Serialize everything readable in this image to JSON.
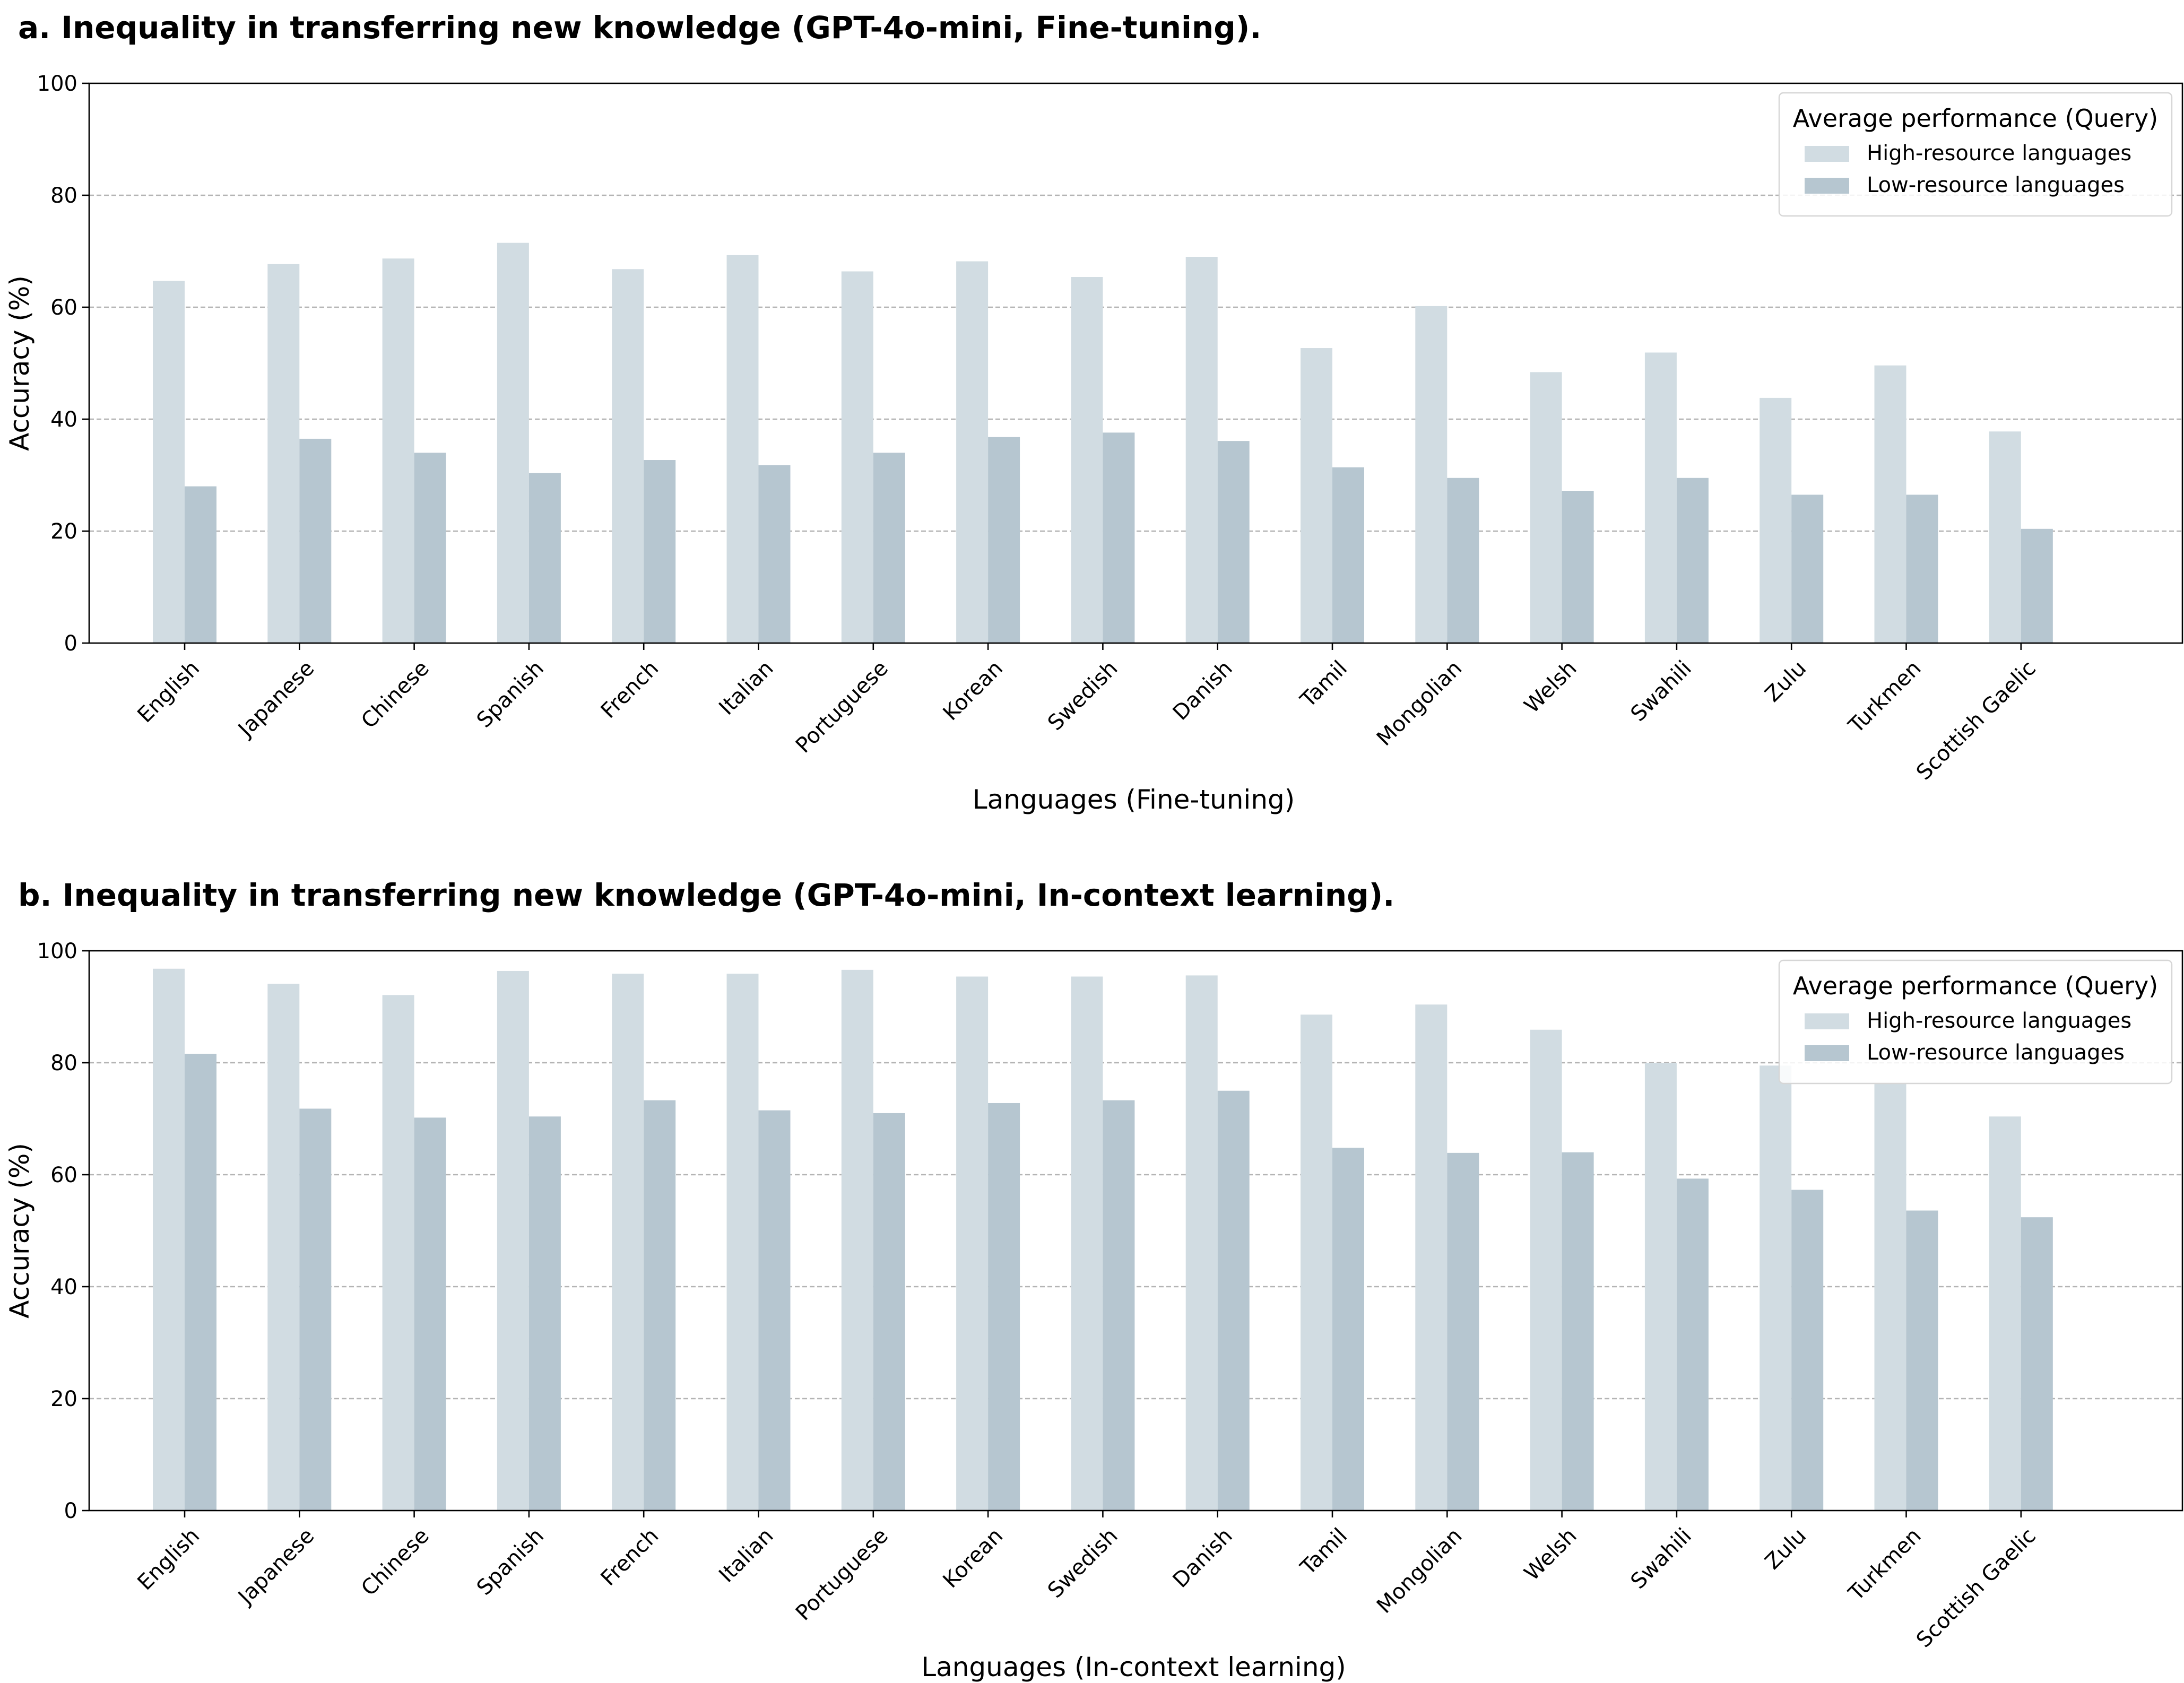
{
  "chart_data": [
    {
      "type": "bar",
      "panel_title": "a. Inequality in transferring new knowledge (GPT-4o-mini, Fine-tuning).",
      "xlabel": "Languages (Fine-tuning)",
      "ylabel": "Accuracy (%)",
      "ylim": [
        0,
        100
      ],
      "yticks": [
        0,
        20,
        40,
        60,
        80,
        100
      ],
      "grid": "horizontal dashed",
      "legend": {
        "title": "Average performance (Query)",
        "placement": "top-right"
      },
      "categories": [
        "English",
        "Japanese",
        "Chinese",
        "Spanish",
        "French",
        "Italian",
        "Portuguese",
        "Korean",
        "Swedish",
        "Danish",
        "Tamil",
        "Mongolian",
        "Welsh",
        "Swahili",
        "Zulu",
        "Turkmen",
        "Scottish Gaelic"
      ],
      "series": [
        {
          "name": "High-resource languages",
          "color": "#d1dce2",
          "values": [
            64.7,
            67.7,
            68.7,
            71.5,
            66.8,
            69.3,
            66.4,
            68.2,
            65.4,
            69.0,
            52.7,
            60.2,
            48.4,
            51.9,
            43.8,
            49.6,
            37.8
          ]
        },
        {
          "name": "Low-resource languages",
          "color": "#b6c6d0",
          "values": [
            28.0,
            36.5,
            34.0,
            30.4,
            32.7,
            31.8,
            34.0,
            36.8,
            37.6,
            36.1,
            31.4,
            29.5,
            27.2,
            29.5,
            26.5,
            26.5,
            20.4
          ]
        }
      ]
    },
    {
      "type": "bar",
      "panel_title": "b. Inequality in transferring new knowledge (GPT-4o-mini, In-context learning).",
      "xlabel": "Languages (In-context learning)",
      "ylabel": "Accuracy (%)",
      "ylim": [
        0,
        100
      ],
      "yticks": [
        0,
        20,
        40,
        60,
        80,
        100
      ],
      "grid": "horizontal dashed",
      "legend": {
        "title": "Average performance (Query)",
        "placement": "top-right"
      },
      "categories": [
        "English",
        "Japanese",
        "Chinese",
        "Spanish",
        "French",
        "Italian",
        "Portuguese",
        "Korean",
        "Swedish",
        "Danish",
        "Tamil",
        "Mongolian",
        "Welsh",
        "Swahili",
        "Zulu",
        "Turkmen",
        "Scottish Gaelic"
      ],
      "series": [
        {
          "name": "High-resource languages",
          "color": "#d1dce2",
          "values": [
            96.8,
            94.1,
            92.1,
            96.4,
            95.9,
            95.9,
            96.6,
            95.4,
            95.4,
            95.6,
            88.6,
            90.4,
            85.9,
            80.0,
            79.5,
            76.3,
            70.4
          ]
        },
        {
          "name": "Low-resource languages",
          "color": "#b6c6d0",
          "values": [
            81.6,
            71.8,
            70.2,
            70.4,
            73.3,
            71.5,
            71.0,
            72.8,
            73.3,
            75.0,
            64.8,
            63.9,
            64.0,
            59.3,
            57.3,
            53.6,
            52.4
          ]
        }
      ]
    }
  ]
}
